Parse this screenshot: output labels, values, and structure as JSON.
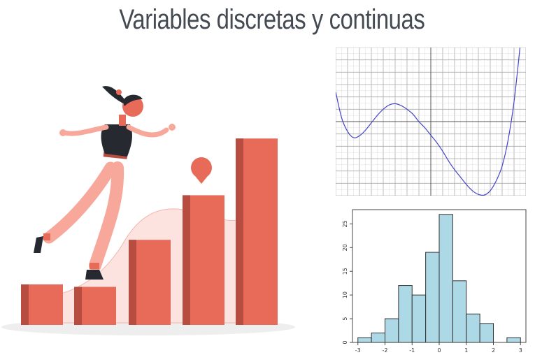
{
  "title": "Variables discretas y continuas",
  "colors": {
    "title": "#444a52",
    "bar": "#e86a58",
    "bar_shade": "#b64d40",
    "curve": "#4545c8",
    "hist_fill": "#add8e6",
    "hist_edge": "#333333",
    "figure_top": "#26292f",
    "figure_pants": "#f7a89a"
  },
  "illustration": {
    "bars": [
      1.0,
      0.94,
      2.1,
      3.2,
      4.6
    ],
    "icons": [
      "location-pin-icon",
      "woman-figure"
    ]
  },
  "chart_data": [
    {
      "type": "line",
      "xlim": [
        -8,
        8
      ],
      "ylim": [
        -6,
        6
      ],
      "grid": true,
      "x": [
        -8,
        -7.5,
        -7,
        -6.5,
        -6,
        -5.5,
        -5,
        -4.5,
        -4,
        -3.5,
        -3,
        -2.5,
        -2,
        -1.5,
        -1,
        -0.5,
        0,
        0.5,
        1,
        1.5,
        2,
        2.5,
        3,
        3.5,
        4,
        4.5,
        5,
        5.5,
        6,
        6.5,
        7,
        7.5
      ],
      "series": [
        {
          "values": [
            2.4,
            0.3,
            -0.8,
            -1.3,
            -1.15,
            -0.7,
            -0.1,
            0.5,
            1.0,
            1.35,
            1.45,
            1.3,
            1.0,
            0.6,
            0.0,
            -0.5,
            -1.1,
            -1.7,
            -2.4,
            -3.2,
            -3.9,
            -4.5,
            -5.1,
            -5.6,
            -5.9,
            -5.95,
            -5.6,
            -4.8,
            -3.6,
            -1.5,
            1.6,
            6.0
          ]
        }
      ]
    },
    {
      "type": "bar",
      "subtype": "histogram",
      "xlim": [
        -3.2,
        3.2
      ],
      "ylim": [
        0,
        28
      ],
      "x_ticks": [
        "-3",
        "-2",
        "-1",
        "0",
        "1",
        "2",
        "3"
      ],
      "y_ticks": [
        "0",
        "5",
        "10",
        "15",
        "20",
        "25"
      ],
      "bin_edges": [
        -3.0,
        -2.5,
        -2.0,
        -1.5,
        -1.0,
        -0.5,
        0.0,
        0.5,
        1.0,
        1.5,
        2.0,
        2.5,
        3.0
      ],
      "values": [
        1,
        2,
        5,
        12,
        10,
        19,
        27,
        13,
        6,
        4,
        0,
        1
      ]
    }
  ]
}
